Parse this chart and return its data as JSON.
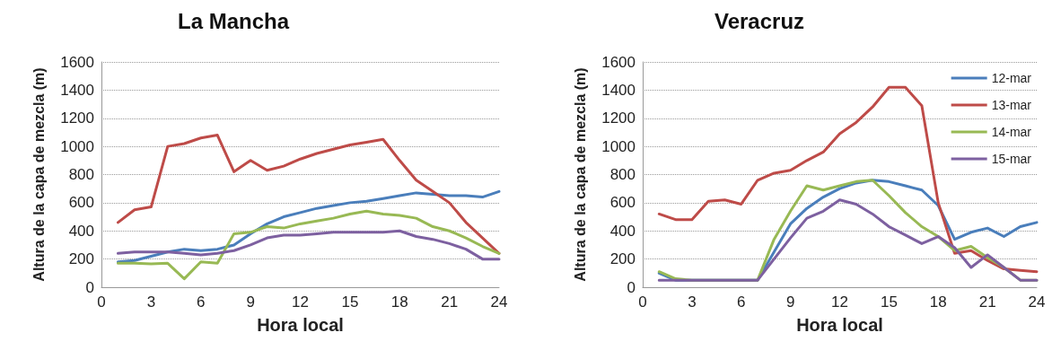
{
  "chart_data": [
    {
      "type": "line",
      "title": "La Mancha",
      "xlabel": "Hora local",
      "ylabel": "Altura de la capa de mezcla (m)",
      "x": [
        1,
        2,
        3,
        4,
        5,
        6,
        7,
        8,
        9,
        10,
        11,
        12,
        13,
        14,
        15,
        16,
        17,
        18,
        19,
        20,
        21,
        22,
        23,
        24
      ],
      "xlim": [
        0,
        24
      ],
      "xticks": [
        0,
        3,
        6,
        9,
        12,
        15,
        18,
        21,
        24
      ],
      "ylim": [
        0,
        1600
      ],
      "yticks": [
        0,
        200,
        400,
        600,
        800,
        1000,
        1200,
        1400,
        1600
      ],
      "grid": "y",
      "legend": false,
      "marker": "none",
      "line_style": "solid",
      "series": [
        {
          "color": "#4a7ebb",
          "values": [
            180,
            190,
            220,
            250,
            270,
            260,
            270,
            300,
            380,
            450,
            500,
            530,
            560,
            580,
            600,
            610,
            630,
            650,
            670,
            660,
            650,
            650,
            640,
            680
          ]
        },
        {
          "color": "#be4b48",
          "values": [
            460,
            550,
            570,
            1000,
            1020,
            1060,
            1080,
            820,
            900,
            830,
            860,
            910,
            950,
            980,
            1010,
            1030,
            1050,
            900,
            760,
            680,
            600,
            460,
            350,
            240
          ]
        },
        {
          "color": "#98b954",
          "values": [
            170,
            170,
            165,
            170,
            60,
            180,
            170,
            380,
            390,
            430,
            420,
            450,
            470,
            490,
            520,
            540,
            520,
            510,
            490,
            430,
            400,
            350,
            290,
            240
          ]
        },
        {
          "color": "#7d60a0",
          "values": [
            240,
            250,
            250,
            250,
            240,
            230,
            240,
            260,
            300,
            350,
            370,
            370,
            380,
            390,
            390,
            390,
            390,
            400,
            360,
            340,
            310,
            270,
            200,
            200
          ]
        }
      ]
    },
    {
      "type": "line",
      "title": "Veracruz",
      "xlabel": "Hora local",
      "ylabel": "Altura de la capa de mezcla (m)",
      "x": [
        1,
        2,
        3,
        4,
        5,
        6,
        7,
        8,
        9,
        10,
        11,
        12,
        13,
        14,
        15,
        16,
        17,
        18,
        19,
        20,
        21,
        22,
        23,
        24
      ],
      "xlim": [
        0,
        24
      ],
      "xticks": [
        0,
        3,
        6,
        9,
        12,
        15,
        18,
        21,
        24
      ],
      "ylim": [
        0,
        1600
      ],
      "yticks": [
        0,
        200,
        400,
        600,
        800,
        1000,
        1200,
        1400,
        1600
      ],
      "grid": "y",
      "legend": "top right",
      "marker": "none",
      "line_style": "solid",
      "series": [
        {
          "name": "12-mar",
          "color": "#4a7ebb",
          "values": [
            100,
            50,
            50,
            50,
            50,
            50,
            50,
            250,
            450,
            560,
            640,
            700,
            740,
            760,
            750,
            720,
            690,
            580,
            340,
            390,
            420,
            360,
            430,
            460
          ]
        },
        {
          "name": "13-mar",
          "color": "#be4b48",
          "values": [
            520,
            480,
            480,
            610,
            620,
            590,
            760,
            810,
            830,
            900,
            960,
            1090,
            1170,
            1280,
            1420,
            1420,
            1290,
            600,
            240,
            260,
            190,
            130,
            120,
            110
          ]
        },
        {
          "name": "14-mar",
          "color": "#98b954",
          "values": [
            110,
            60,
            50,
            50,
            50,
            50,
            50,
            340,
            540,
            720,
            690,
            720,
            750,
            760,
            650,
            530,
            430,
            360,
            260,
            290,
            210,
            140,
            50,
            50
          ]
        },
        {
          "name": "15-mar",
          "color": "#7d60a0",
          "values": [
            50,
            50,
            50,
            50,
            50,
            50,
            50,
            200,
            350,
            490,
            540,
            620,
            590,
            520,
            430,
            370,
            310,
            360,
            280,
            140,
            230,
            140,
            50,
            50
          ]
        }
      ]
    }
  ]
}
